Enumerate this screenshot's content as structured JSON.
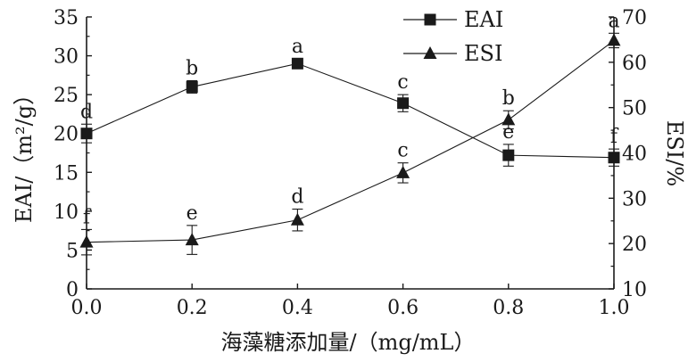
{
  "chart_data": {
    "type": "line",
    "x": [
      0.0,
      0.2,
      0.4,
      0.6,
      0.8,
      1.0
    ],
    "xlabel": "海藻糖添加量/（mg/mL）",
    "xlim": [
      0.0,
      1.0
    ],
    "xticks": [
      "0.0",
      "0.2",
      "0.4",
      "0.6",
      "0.8",
      "1.0"
    ],
    "ylabel_left": "EAI/（m²/g）",
    "ylim_left": [
      0,
      35
    ],
    "yticks_left": [
      "0",
      "5",
      "10",
      "15",
      "20",
      "25",
      "30",
      "35"
    ],
    "ylabel_right": "ESI/%",
    "ylim_right": [
      10,
      70
    ],
    "yticks_right": [
      "10",
      "20",
      "30",
      "40",
      "50",
      "60",
      "70"
    ],
    "legend_position": "top-center",
    "grid": false,
    "series": [
      {
        "name": "EAI",
        "axis": "left",
        "marker": "square",
        "values": [
          20.0,
          26.0,
          29.0,
          23.9,
          17.2,
          16.9
        ],
        "errors": [
          1.2,
          0.8,
          0.6,
          1.1,
          1.4,
          1.1
        ],
        "labels": [
          "d",
          "b",
          "a",
          "c",
          "e",
          "f"
        ]
      },
      {
        "name": "ESI",
        "axis": "right",
        "marker": "triangle",
        "values": [
          20.3,
          20.8,
          25.2,
          35.6,
          47.3,
          64.8
        ],
        "errors": [
          2.8,
          3.2,
          2.4,
          2.2,
          2.0,
          1.6
        ],
        "labels": [
          "f",
          "e",
          "d",
          "c",
          "b",
          "a"
        ]
      }
    ],
    "colors": {
      "line": "#1a1a1a",
      "marker": "#1a1a1a"
    }
  }
}
